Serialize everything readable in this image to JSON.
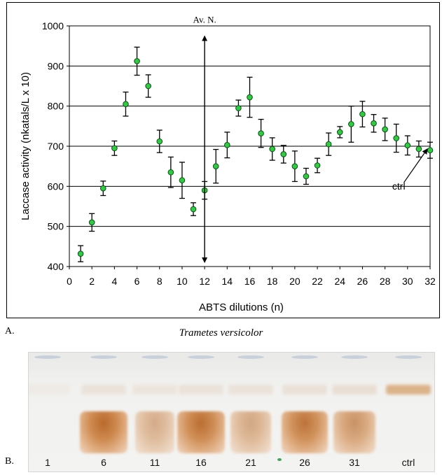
{
  "chart_data": {
    "type": "scatter",
    "xlabel": "ABTS dilutions (n)",
    "ylabel": "Laccase activity (nkatals/L x 10)",
    "xlim": [
      0,
      32
    ],
    "ylim": [
      400,
      1000
    ],
    "x_ticks": [
      0,
      2,
      4,
      6,
      8,
      10,
      12,
      14,
      16,
      18,
      20,
      22,
      24,
      26,
      28,
      30,
      32
    ],
    "y_ticks": [
      400,
      500,
      600,
      700,
      800,
      900,
      1000
    ],
    "grid": "horizontal",
    "marker_color": "#2ecc40",
    "points": [
      {
        "x": 1,
        "y": 432,
        "err": 20
      },
      {
        "x": 2,
        "y": 510,
        "err": 22
      },
      {
        "x": 3,
        "y": 595,
        "err": 18
      },
      {
        "x": 4,
        "y": 695,
        "err": 18
      },
      {
        "x": 5,
        "y": 805,
        "err": 30
      },
      {
        "x": 6,
        "y": 912,
        "err": 35
      },
      {
        "x": 7,
        "y": 850,
        "err": 28
      },
      {
        "x": 8,
        "y": 712,
        "err": 28
      },
      {
        "x": 9,
        "y": 635,
        "err": 38
      },
      {
        "x": 10,
        "y": 615,
        "err": 45
      },
      {
        "x": 11,
        "y": 543,
        "err": 16
      },
      {
        "x": 12,
        "y": 590,
        "err": 22
      },
      {
        "x": 13,
        "y": 650,
        "err": 42
      },
      {
        "x": 14,
        "y": 703,
        "err": 32
      },
      {
        "x": 15,
        "y": 795,
        "err": 20
      },
      {
        "x": 16,
        "y": 822,
        "err": 50
      },
      {
        "x": 17,
        "y": 732,
        "err": 35
      },
      {
        "x": 18,
        "y": 693,
        "err": 28
      },
      {
        "x": 19,
        "y": 680,
        "err": 22
      },
      {
        "x": 20,
        "y": 650,
        "err": 38
      },
      {
        "x": 21,
        "y": 625,
        "err": 20
      },
      {
        "x": 22,
        "y": 652,
        "err": 18
      },
      {
        "x": 23,
        "y": 705,
        "err": 28
      },
      {
        "x": 24,
        "y": 735,
        "err": 14
      },
      {
        "x": 25,
        "y": 755,
        "err": 45
      },
      {
        "x": 26,
        "y": 780,
        "err": 32
      },
      {
        "x": 27,
        "y": 757,
        "err": 22
      },
      {
        "x": 28,
        "y": 742,
        "err": 28
      },
      {
        "x": 29,
        "y": 720,
        "err": 35
      },
      {
        "x": 30,
        "y": 702,
        "err": 24
      },
      {
        "x": 31,
        "y": 693,
        "err": 20
      },
      {
        "x": 32,
        "y": 690,
        "err": 20
      }
    ],
    "annotations": {
      "av_n": {
        "label": "Av. N.",
        "x": 12,
        "y_top": 985,
        "y_bottom": 400
      },
      "ctrl": {
        "label": "ctrl",
        "x": 29.8,
        "y": 592,
        "target_x": 32,
        "target_y": 700
      }
    }
  },
  "labels": {
    "panel_a": "A.",
    "panel_b": "B.",
    "caption": "Trametes versicolor"
  },
  "gel": {
    "lanes": [
      {
        "label": "1",
        "main_band": 0.0,
        "top_band": 0.15
      },
      {
        "label": "6",
        "main_band": 1.0,
        "top_band": 0.35
      },
      {
        "label": "11",
        "main_band": 0.35,
        "top_band": 0.3
      },
      {
        "label": "16",
        "main_band": 0.95,
        "top_band": 0.35
      },
      {
        "label": "21",
        "main_band": 0.4,
        "top_band": 0.35
      },
      {
        "label": "26",
        "main_band": 0.9,
        "top_band": 0.4
      },
      {
        "label": "31",
        "main_band": 0.6,
        "top_band": 0.45
      },
      {
        "label": "ctrl",
        "main_band": 0.0,
        "top_band": 0.85
      }
    ]
  }
}
